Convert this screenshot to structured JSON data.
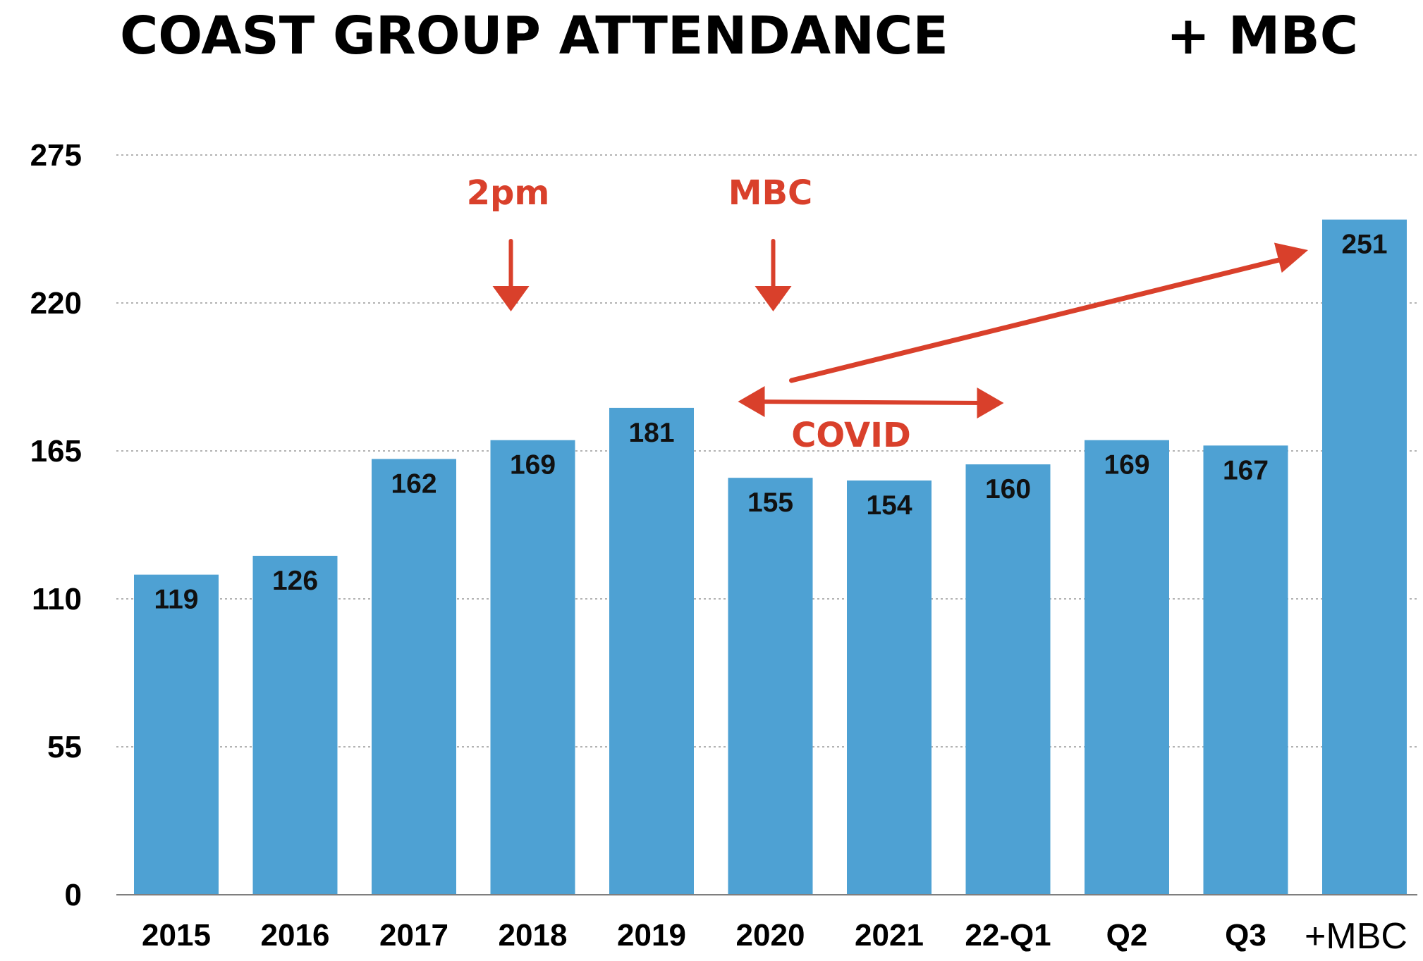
{
  "chart_data": {
    "type": "bar",
    "title": "COAST GROUP ATTENDANCE",
    "title_suffix": "+ MBC",
    "xlabel": "",
    "ylabel": "",
    "ylim": [
      0,
      275
    ],
    "yticks": [
      0,
      55,
      110,
      165,
      220,
      275
    ],
    "grid": true,
    "categories": [
      "2015",
      "2016",
      "2017",
      "2018",
      "2019",
      "2020",
      "2021",
      "22-Q1",
      "Q2",
      "Q3",
      "+MBC"
    ],
    "values": [
      119,
      126,
      162,
      169,
      181,
      155,
      154,
      160,
      169,
      167,
      251
    ],
    "bar_color": "#4ea1d3",
    "annotation_color": "#d9402b",
    "annotations": [
      {
        "text": "2pm",
        "near_category": "2018",
        "kind": "down-arrow"
      },
      {
        "text": "MBC",
        "near_category": "2020",
        "kind": "down-arrow"
      },
      {
        "text": "COVID",
        "from_category": "2020",
        "to_category": "22-Q1",
        "kind": "double-arrow"
      },
      {
        "text": "",
        "from_category": "2020",
        "to_category": "+MBC",
        "kind": "up-arrow"
      }
    ]
  }
}
